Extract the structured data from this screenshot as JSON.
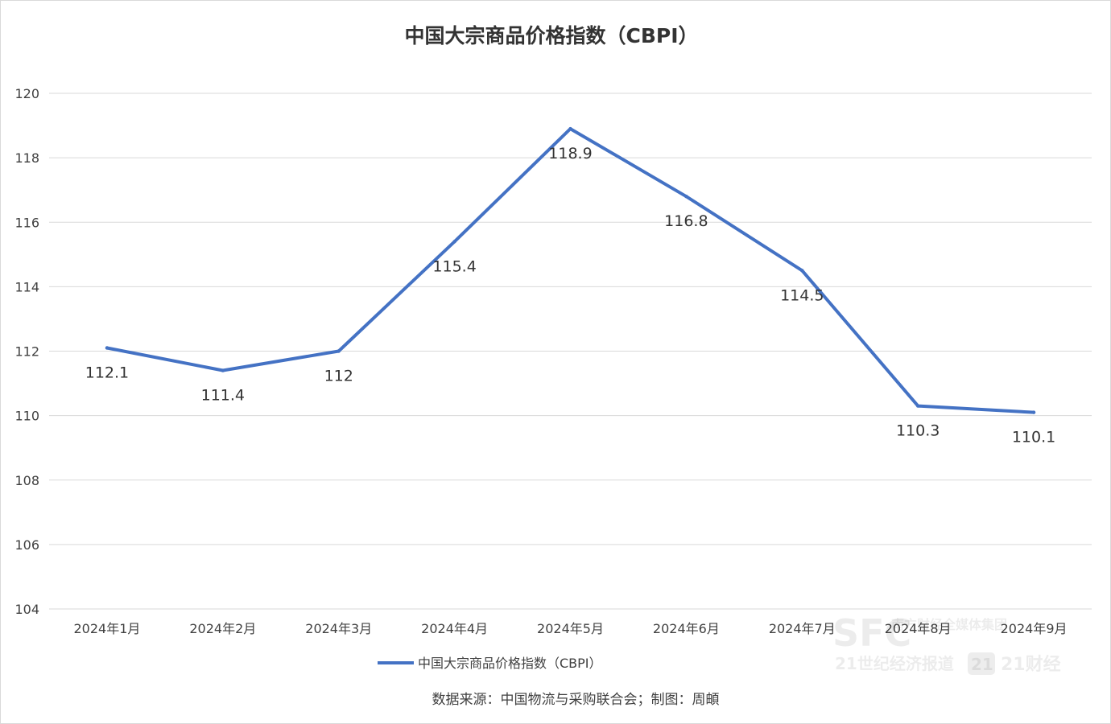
{
  "chart_data": {
    "type": "line",
    "title": "中国大宗商品价格指数（CBPI）",
    "categories": [
      "2024年1月",
      "2024年2月",
      "2024年3月",
      "2024年4月",
      "2024年5月",
      "2024年6月",
      "2024年7月",
      "2024年8月",
      "2024年9月"
    ],
    "series": [
      {
        "name": "中国大宗商品价格指数（CBPI）",
        "values": [
          112.1,
          111.4,
          112,
          115.4,
          118.9,
          116.8,
          114.5,
          110.3,
          110.1
        ],
        "labels": [
          "112.1",
          "111.4",
          "112",
          "115.4",
          "118.9",
          "116.8",
          "114.5",
          "110.3",
          "110.1"
        ],
        "color": "#4472C4"
      }
    ],
    "yticks": [
      "104",
      "106",
      "108",
      "110",
      "112",
      "114",
      "116",
      "118",
      "120"
    ],
    "ylim": [
      104,
      120
    ],
    "grid": true,
    "legend_position": "bottom",
    "source_note": "数据来源：中国物流与采购联合会；制图：周頔"
  },
  "watermark": {
    "logo": "SFC",
    "brand_cn": "21世纪经济报道",
    "brand_21": "21",
    "brand_app": "21财经",
    "brand_top": "南方财经全媒体集团"
  },
  "colors": {
    "line": "#4472C4",
    "grid": "#d9d9d9",
    "text": "#404040"
  }
}
